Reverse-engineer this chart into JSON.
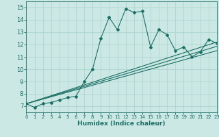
{
  "xlabel": "Humidex (Indice chaleur)",
  "bg_color": "#cce8e5",
  "grid_color": "#afd4d0",
  "line_color": "#1a6e64",
  "xlim": [
    0,
    23
  ],
  "ylim": [
    6.5,
    15.5
  ],
  "xticks": [
    0,
    1,
    2,
    3,
    4,
    5,
    6,
    7,
    8,
    9,
    10,
    11,
    12,
    13,
    14,
    15,
    16,
    17,
    18,
    19,
    20,
    21,
    22,
    23
  ],
  "yticks": [
    7,
    8,
    9,
    10,
    11,
    12,
    13,
    14,
    15
  ],
  "series1_x": [
    0,
    1,
    2,
    3,
    4,
    5,
    6,
    7,
    8,
    9,
    10,
    11,
    12,
    13,
    14,
    15,
    16,
    17,
    18,
    19,
    20,
    21,
    22,
    23
  ],
  "series1_y": [
    7.2,
    6.9,
    7.2,
    7.3,
    7.5,
    7.7,
    7.8,
    9.0,
    10.0,
    12.5,
    14.2,
    13.2,
    14.9,
    14.6,
    14.7,
    11.8,
    13.2,
    12.8,
    11.5,
    11.8,
    11.0,
    11.4,
    12.4,
    12.1
  ],
  "series2_x": [
    0,
    23
  ],
  "series2_y": [
    7.2,
    12.2
  ],
  "series3_x": [
    0,
    23
  ],
  "series3_y": [
    7.2,
    11.5
  ],
  "series4_x": [
    0,
    23
  ],
  "series4_y": [
    7.2,
    11.85
  ]
}
